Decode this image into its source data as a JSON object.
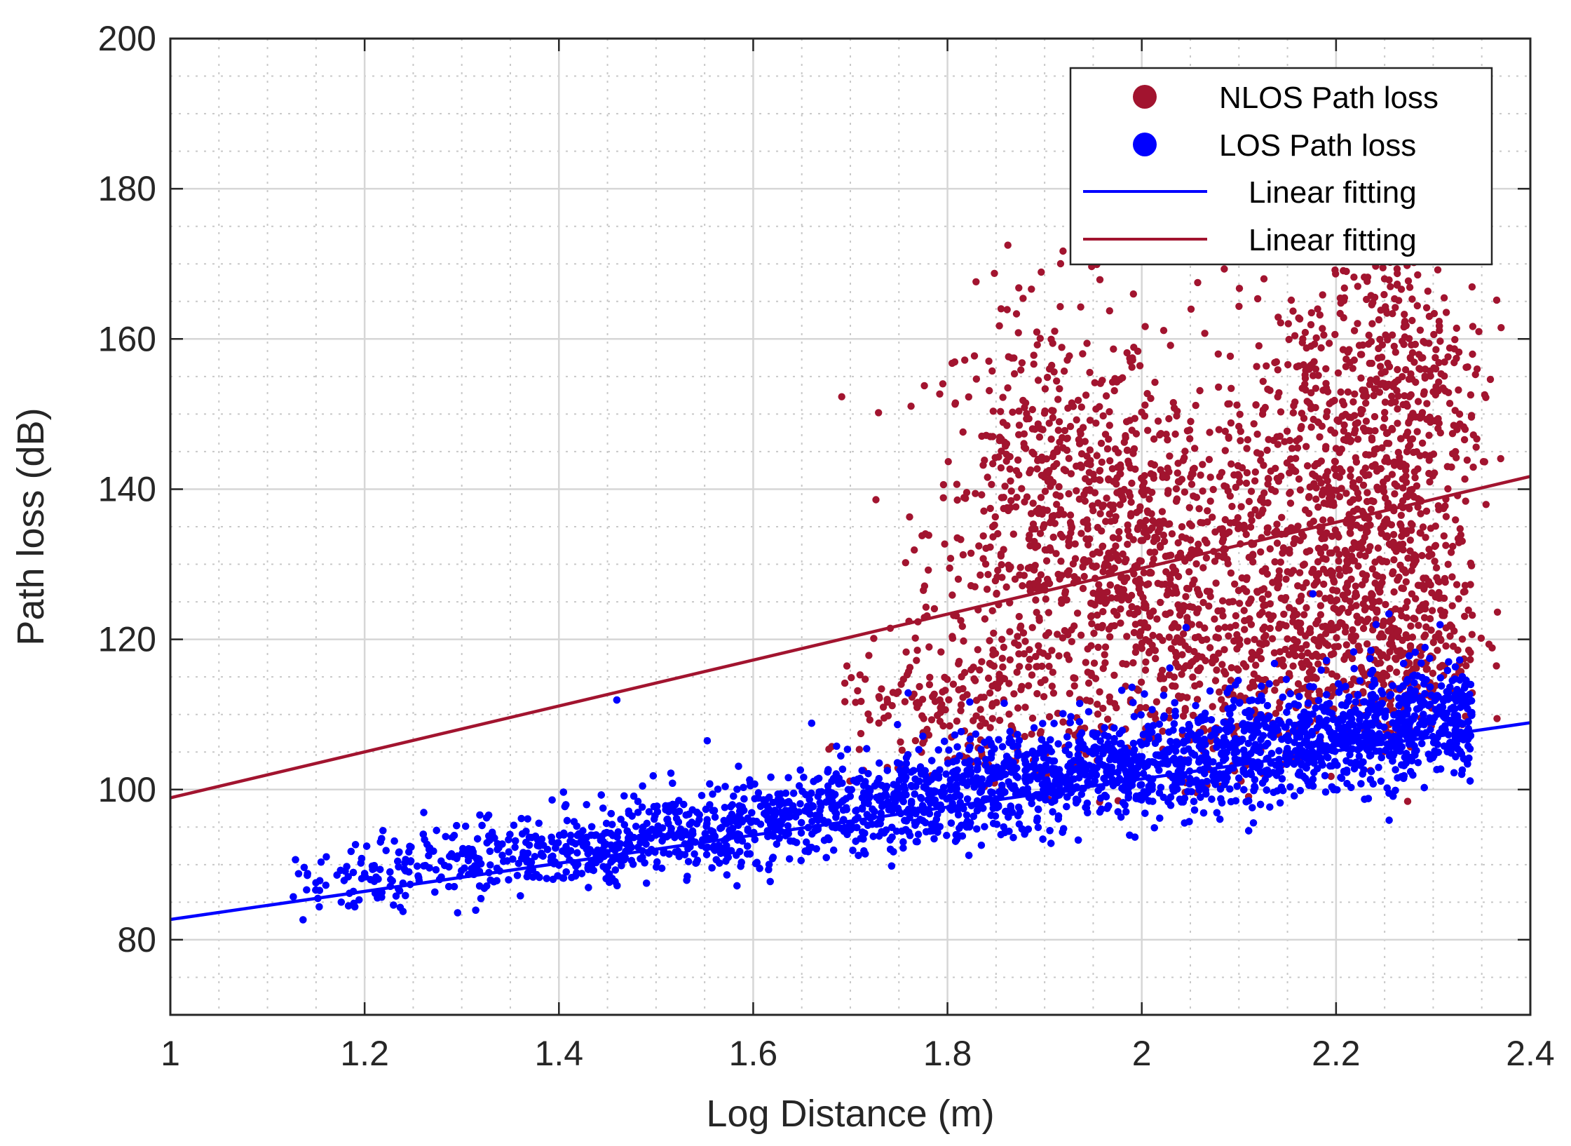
{
  "chart_data": {
    "type": "scatter",
    "title": "",
    "xlabel": "Log Distance (m)",
    "ylabel": "Path loss (dB)",
    "xlim": [
      1,
      2.4
    ],
    "ylim": [
      70,
      200
    ],
    "x_ticks": [
      1,
      1.2,
      1.4,
      1.6,
      1.8,
      2,
      2.2,
      2.4
    ],
    "x_tick_labels": [
      "1",
      "1.2",
      "1.4",
      "1.6",
      "1.8",
      "2",
      "2.2",
      "2.4"
    ],
    "y_ticks": [
      80,
      100,
      120,
      140,
      160,
      180,
      200
    ],
    "y_tick_labels": [
      "80",
      "100",
      "120",
      "140",
      "160",
      "180",
      "200"
    ],
    "grid": true,
    "minor_grid": true,
    "legend_position": "top-right",
    "series": [
      {
        "name": "NLOS Path loss",
        "kind": "scatter",
        "color": "#A2142F",
        "clusters": [
          {
            "cx": 1.9,
            "cy": 135,
            "sx": 0.06,
            "sy": 15,
            "n": 560
          },
          {
            "cx": 2.02,
            "cy": 128,
            "sx": 0.07,
            "sy": 14,
            "n": 700
          },
          {
            "cx": 2.18,
            "cy": 140,
            "sx": 0.05,
            "sy": 15,
            "n": 520
          },
          {
            "cx": 2.27,
            "cy": 152,
            "sx": 0.04,
            "sy": 13,
            "n": 420
          },
          {
            "cx": 2.27,
            "cy": 123,
            "sx": 0.04,
            "sy": 8,
            "n": 320
          },
          {
            "cx": 2.16,
            "cy": 117,
            "sx": 0.07,
            "sy": 7,
            "n": 280
          },
          {
            "cx": 1.8,
            "cy": 110,
            "sx": 0.06,
            "sy": 5,
            "n": 160
          }
        ]
      },
      {
        "name": "LOS Path loss",
        "kind": "scatter",
        "color": "#0000FF",
        "x_range": [
          1.12,
          2.34
        ],
        "trend_slope": 18.5,
        "trend_intercept": 66.2,
        "spread_db": [
          2.3,
          4.0
        ],
        "count": 6500
      },
      {
        "name": "Linear fitting",
        "kind": "line",
        "color": "#0000FF",
        "x": [
          1,
          2.4
        ],
        "y": [
          82.7,
          108.9
        ]
      },
      {
        "name": "Linear fitting",
        "kind": "line",
        "color": "#A2142F",
        "x": [
          1,
          2.4
        ],
        "y": [
          98.9,
          141.7
        ]
      }
    ],
    "legend": [
      {
        "label": "NLOS Path loss",
        "symbol": "marker",
        "color": "#A2142F"
      },
      {
        "label": "LOS Path loss",
        "symbol": "marker",
        "color": "#0000FF"
      },
      {
        "label": "Linear fitting",
        "symbol": "line",
        "color": "#0000FF"
      },
      {
        "label": "Linear fitting",
        "symbol": "line",
        "color": "#A2142F"
      }
    ]
  }
}
